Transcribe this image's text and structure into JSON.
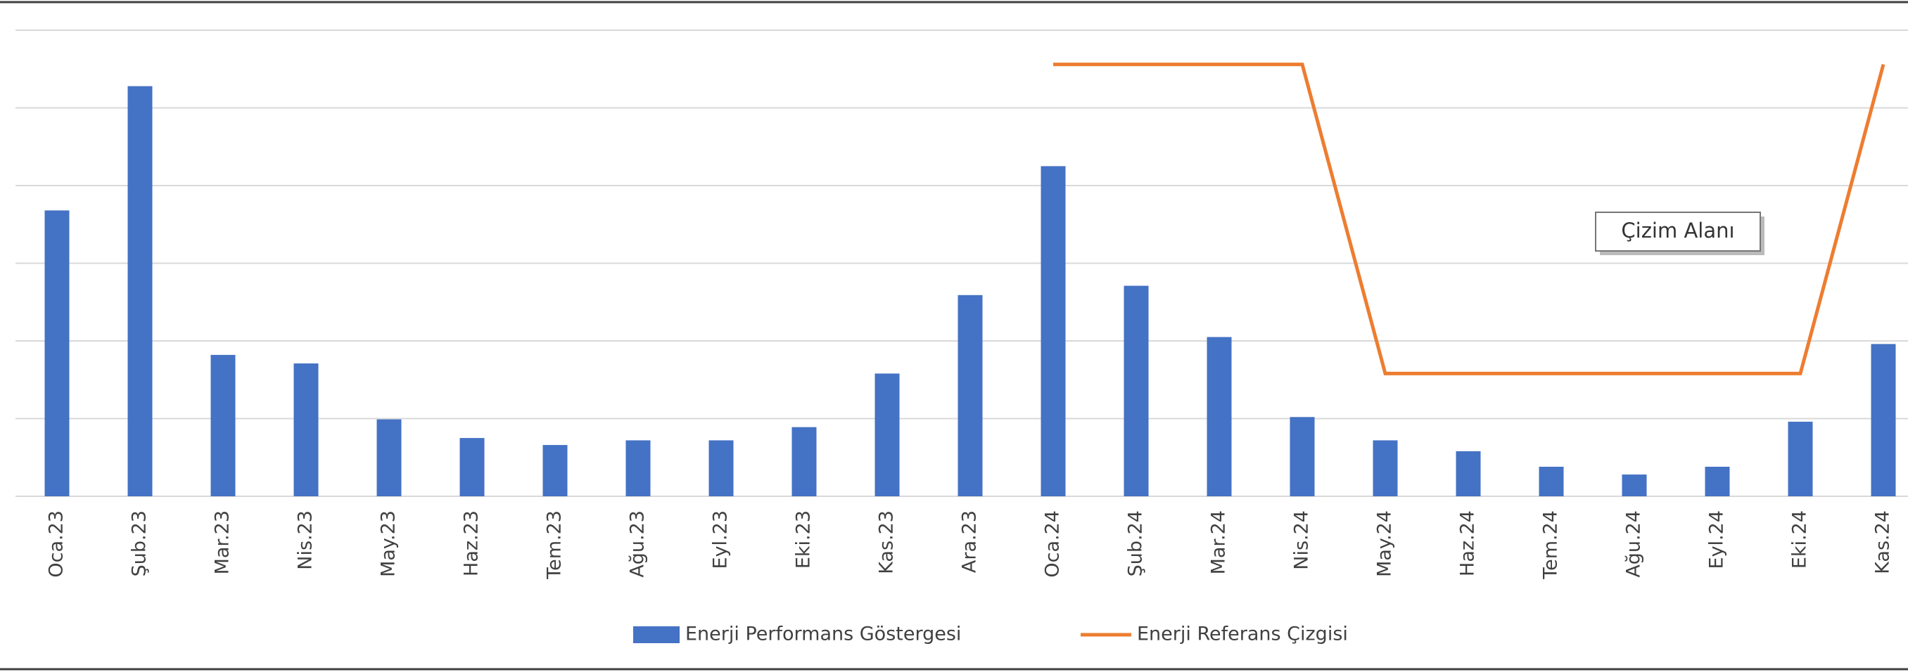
{
  "chart_data": {
    "type": "bar",
    "categories": [
      "Oca.23",
      "Şub.23",
      "Mar.23",
      "Nis.23",
      "May.23",
      "Haz.23",
      "Tem.23",
      "Ağu.23",
      "Eyl.23",
      "Eki.23",
      "Kas.23",
      "Ara.23",
      "Oca.24",
      "Şub.24",
      "Mar.24",
      "Nis.24",
      "May.24",
      "Haz.24",
      "Tem.24",
      "Ağu.24",
      "Eyl.24",
      "Eki.24",
      "Kas.24"
    ],
    "series": [
      {
        "name": "Enerji Performans Göstergesi",
        "type": "bar",
        "color": "#4472c4",
        "values": [
          3.68,
          5.28,
          1.82,
          1.71,
          0.99,
          0.75,
          0.66,
          0.72,
          0.72,
          0.89,
          1.58,
          2.59,
          4.25,
          2.71,
          2.05,
          1.02,
          0.72,
          0.58,
          0.38,
          0.28,
          0.38,
          0.96,
          1.96
        ]
      },
      {
        "name": "Enerji Referans Çizgisi",
        "type": "line",
        "color": "#ed7d31",
        "values": [
          null,
          null,
          null,
          null,
          null,
          null,
          null,
          null,
          null,
          null,
          null,
          null,
          5.56,
          5.56,
          5.56,
          5.56,
          1.58,
          1.58,
          1.58,
          1.58,
          1.58,
          1.58,
          5.56
        ]
      }
    ],
    "ylim": [
      0,
      6
    ],
    "yticks": [
      0,
      1,
      2,
      3,
      4,
      5,
      6
    ],
    "grid": true,
    "legend": "bottom"
  },
  "tooltip": "Çizim Alanı"
}
